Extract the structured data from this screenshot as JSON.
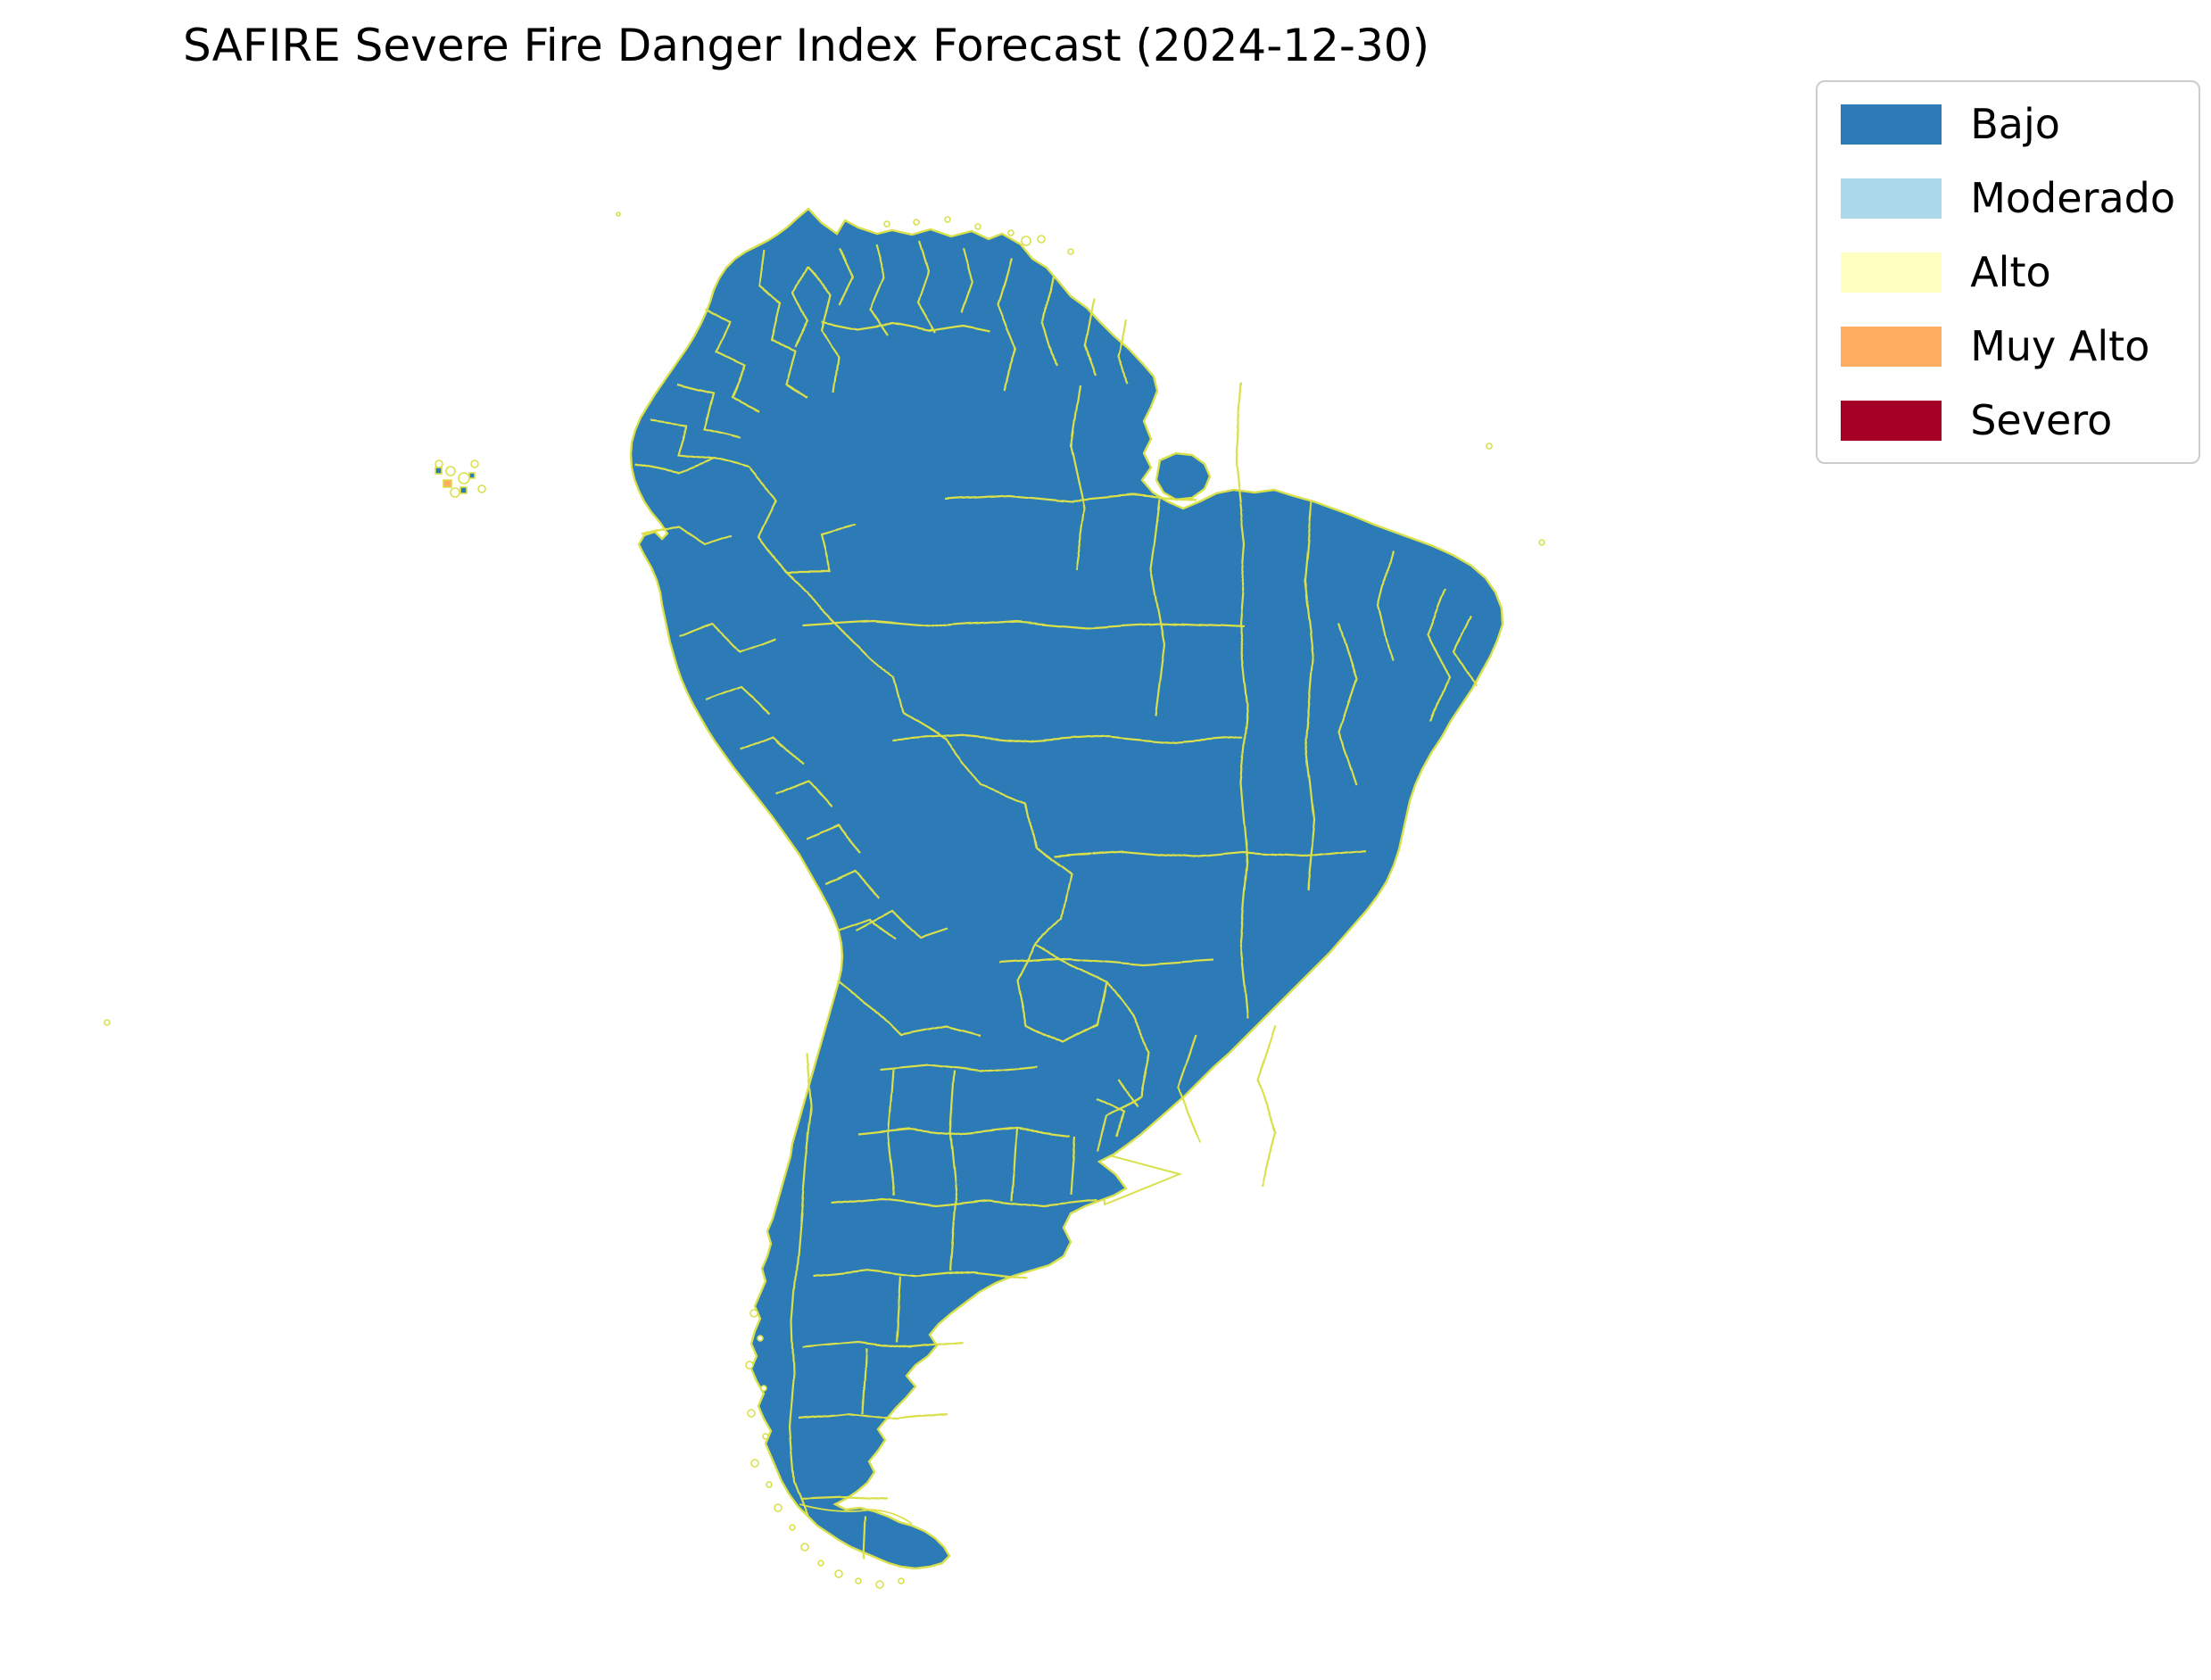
{
  "title": "SAFIRE Severe Fire Danger Index Forecast (2024-12-30)",
  "legend": {
    "items": [
      {
        "label": "Bajo",
        "color": "#2c7bb6"
      },
      {
        "label": "Moderado",
        "color": "#abd9e9"
      },
      {
        "label": "Alto",
        "color": "#ffffbf"
      },
      {
        "label": "Muy Alto",
        "color": "#fdae61"
      },
      {
        "label": "Severo",
        "color": "#a50026"
      }
    ]
  },
  "map": {
    "region": "South America",
    "base_category": "Bajo",
    "categories": {
      "Bajo": "#2c7bb6",
      "Moderado": "#abd9e9",
      "Alto": "#ffffbf",
      "Muy Alto": "#fdae61",
      "Severo": "#a50026"
    },
    "codes": {
      "M": "Moderado",
      "A": "Alto",
      "O": "Muy Alto",
      "S": "Severo"
    },
    "border_color": "#d9e04a",
    "ocean_color": "#ffffff",
    "cell_size": 11,
    "patches": [
      [
        "M",
        902,
        300,
        209,
        33
      ],
      [
        "M",
        880,
        330,
        231,
        44
      ],
      [
        "M",
        858,
        363,
        253,
        44
      ],
      [
        "M",
        847,
        396,
        143,
        33
      ],
      [
        "M",
        902,
        418,
        110,
        55
      ],
      [
        "M",
        1111,
        308,
        55,
        22
      ],
      [
        "M",
        1111,
        330,
        77,
        55
      ],
      [
        "M",
        1111,
        385,
        66,
        33
      ],
      [
        "M",
        935,
        462,
        44,
        22
      ],
      [
        "M",
        990,
        286,
        33,
        14
      ],
      [
        "M",
        1040,
        292,
        44,
        12
      ],
      [
        "M",
        836,
        385,
        11,
        11
      ],
      [
        "M",
        1177,
        352,
        22,
        22
      ],
      [
        "A",
        1078,
        341,
        22,
        22
      ],
      [
        "A",
        1100,
        352,
        11,
        11
      ],
      [
        "A",
        1122,
        363,
        11,
        11
      ],
      [
        "M",
        1113,
        420,
        66,
        44
      ],
      [
        "M",
        1124,
        464,
        44,
        33
      ],
      [
        "A",
        1157,
        453,
        11,
        11
      ],
      [
        "M",
        1146,
        497,
        22,
        11
      ],
      [
        "M",
        708,
        568,
        14,
        16
      ],
      [
        "M",
        1443,
        572,
        132,
        44
      ],
      [
        "M",
        1465,
        616,
        110,
        44
      ],
      [
        "M",
        1520,
        594,
        176,
        55
      ],
      [
        "M",
        1575,
        649,
        121,
        44
      ],
      [
        "M",
        1605,
        693,
        66,
        44
      ],
      [
        "M",
        1535,
        649,
        44,
        33
      ],
      [
        "M",
        1607,
        737,
        44,
        44
      ],
      [
        "M",
        1630,
        616,
        44,
        33
      ],
      [
        "M",
        1652,
        649,
        33,
        33
      ],
      [
        "M",
        1488,
        660,
        33,
        22
      ],
      [
        "M",
        1564,
        880,
        44,
        22
      ],
      [
        "M",
        1580,
        847,
        44,
        33
      ],
      [
        "A",
        1553,
        682,
        110,
        66
      ],
      [
        "A",
        1530,
        748,
        88,
        55
      ],
      [
        "A",
        1553,
        803,
        66,
        44
      ],
      [
        "A",
        1497,
        770,
        44,
        44
      ],
      [
        "A",
        1608,
        682,
        44,
        44
      ],
      [
        "A",
        1575,
        726,
        66,
        44
      ],
      [
        "A",
        1630,
        745,
        33,
        33
      ],
      [
        "A",
        1510,
        693,
        22,
        22
      ],
      [
        "O",
        1630,
        671,
        33,
        44
      ],
      [
        "O",
        1597,
        693,
        33,
        22
      ],
      [
        "O",
        1640,
        700,
        22,
        22
      ],
      [
        "O",
        1597,
        726,
        44,
        33
      ],
      [
        "O",
        1618,
        748,
        33,
        22
      ],
      [
        "O",
        1575,
        781,
        22,
        22
      ],
      [
        "O",
        1597,
        792,
        22,
        22
      ],
      [
        "O",
        1575,
        671,
        22,
        11
      ],
      [
        "S",
        1607,
        704,
        11,
        11
      ],
      [
        "S",
        1611,
        715,
        40,
        30
      ],
      [
        "S",
        1600,
        719,
        14,
        20
      ],
      [
        "M",
        946,
        935,
        44,
        33
      ],
      [
        "M",
        968,
        968,
        44,
        44
      ],
      [
        "M",
        979,
        1012,
        44,
        44
      ],
      [
        "M",
        990,
        1056,
        33,
        44
      ],
      [
        "M",
        957,
        1078,
        33,
        66
      ],
      [
        "M",
        935,
        1144,
        44,
        44
      ],
      [
        "M",
        913,
        1188,
        33,
        44
      ],
      [
        "A",
        946,
        957,
        33,
        33
      ],
      [
        "A",
        957,
        990,
        44,
        44
      ],
      [
        "A",
        968,
        1034,
        33,
        44
      ],
      [
        "A",
        946,
        1078,
        33,
        66
      ],
      [
        "A",
        924,
        1144,
        33,
        66
      ],
      [
        "A",
        902,
        1210,
        33,
        44
      ],
      [
        "O",
        940,
        924,
        22,
        22
      ],
      [
        "O",
        957,
        1001,
        22,
        22
      ],
      [
        "O",
        968,
        1045,
        22,
        22
      ],
      [
        "O",
        946,
        1122,
        22,
        22
      ],
      [
        "O",
        924,
        1188,
        22,
        22
      ],
      [
        "O",
        979,
        1089,
        22,
        22
      ],
      [
        "O",
        990,
        1078,
        16,
        16
      ],
      [
        "S",
        918,
        913,
        20,
        18
      ],
      [
        "S",
        974,
        1060,
        30,
        28
      ],
      [
        "S",
        957,
        1078,
        18,
        14
      ],
      [
        "A",
        895,
        1232,
        33,
        55
      ],
      [
        "O",
        899,
        1243,
        22,
        44
      ],
      [
        "S",
        891,
        1284,
        37,
        55
      ],
      [
        "O",
        880,
        1339,
        44,
        44
      ],
      [
        "A",
        899,
        1383,
        33,
        44
      ],
      [
        "O",
        891,
        1372,
        22,
        22
      ],
      [
        "A",
        888,
        1427,
        33,
        33
      ],
      [
        "M",
        908,
        1232,
        16,
        99
      ],
      [
        "M",
        862,
        1405,
        33,
        88
      ],
      [
        "M",
        880,
        1460,
        33,
        33
      ],
      [
        "S",
        886,
        1362,
        11,
        11
      ],
      [
        "S",
        876,
        1374,
        11,
        11
      ],
      [
        "M",
        1045,
        1243,
        55,
        44
      ],
      [
        "M",
        1034,
        1287,
        66,
        110
      ],
      [
        "M",
        1001,
        1353,
        44,
        66
      ],
      [
        "M",
        946,
        1397,
        66,
        55
      ],
      [
        "M",
        1012,
        1419,
        55,
        44
      ],
      [
        "A",
        935,
        1309,
        77,
        88
      ],
      [
        "A",
        957,
        1397,
        44,
        33
      ],
      [
        "A",
        1023,
        1331,
        33,
        33
      ],
      [
        "O",
        979,
        1364,
        22,
        22
      ],
      [
        "M",
        1213,
        1150,
        77,
        55
      ],
      [
        "M",
        1100,
        1188,
        187,
        88
      ],
      [
        "M",
        1085,
        1276,
        209,
        99
      ],
      [
        "M",
        1120,
        1375,
        66,
        44
      ],
      [
        "M",
        1166,
        1408,
        33,
        22
      ],
      [
        "A",
        1137,
        1210,
        99,
        77
      ],
      [
        "A",
        1192,
        1205,
        66,
        77
      ],
      [
        "A",
        1085,
        1298,
        121,
        77
      ],
      [
        "A",
        1155,
        1298,
        77,
        66
      ],
      [
        "A",
        1100,
        1375,
        55,
        33
      ],
      [
        "A",
        1225,
        1246,
        44,
        44
      ],
      [
        "O",
        1163,
        1298,
        12,
        12
      ],
      [
        "M",
        928,
        1419,
        33,
        22
      ],
      [
        "M",
        917,
        1441,
        33,
        44
      ],
      [
        "M",
        902,
        1463,
        143,
        88
      ],
      [
        "M",
        891,
        1551,
        121,
        66
      ],
      [
        "M",
        1000,
        1485,
        44,
        77
      ],
      [
        "M",
        940,
        1606,
        66,
        50
      ],
      [
        "M",
        906,
        1654,
        28,
        16
      ],
      [
        "M",
        990,
        1562,
        33,
        33
      ],
      [
        "A",
        913,
        1463,
        66,
        22
      ],
      [
        "A",
        935,
        1441,
        33,
        22
      ],
      [
        "A",
        979,
        1518,
        33,
        33
      ],
      [
        "A",
        957,
        1551,
        44,
        44
      ],
      [
        "A",
        921,
        1595,
        66,
        60
      ],
      [
        "O",
        911,
        1504,
        20,
        45
      ],
      [
        "O",
        908,
        1617,
        33,
        40
      ],
      [
        "O",
        968,
        1617,
        20,
        12
      ],
      [
        "O",
        928,
        1655,
        16,
        12
      ],
      [
        "S",
        916,
        1628,
        20,
        15
      ],
      [
        "S",
        934,
        1625,
        9,
        9
      ]
    ]
  }
}
